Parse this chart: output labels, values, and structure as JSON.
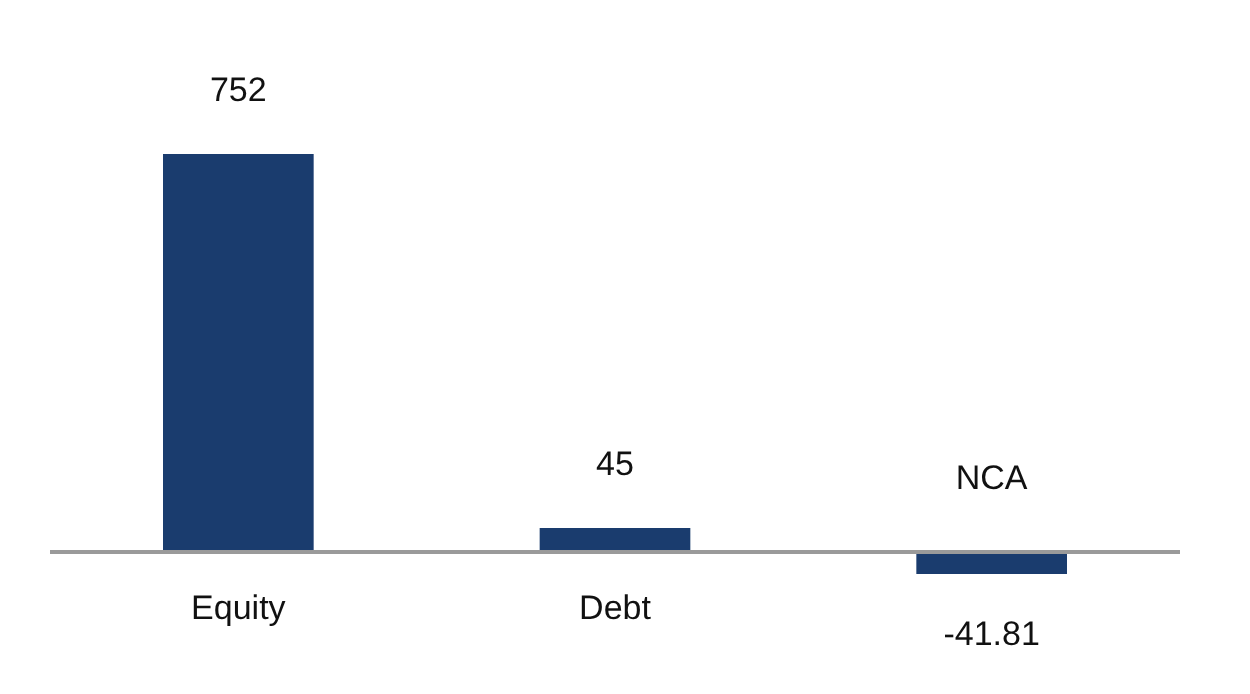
{
  "chart_data": {
    "type": "bar",
    "categories": [
      "Equity",
      "Debt",
      "NCA"
    ],
    "values": [
      752,
      45,
      -41.81
    ],
    "color": "#1a3c6e",
    "data_labels": true
  }
}
